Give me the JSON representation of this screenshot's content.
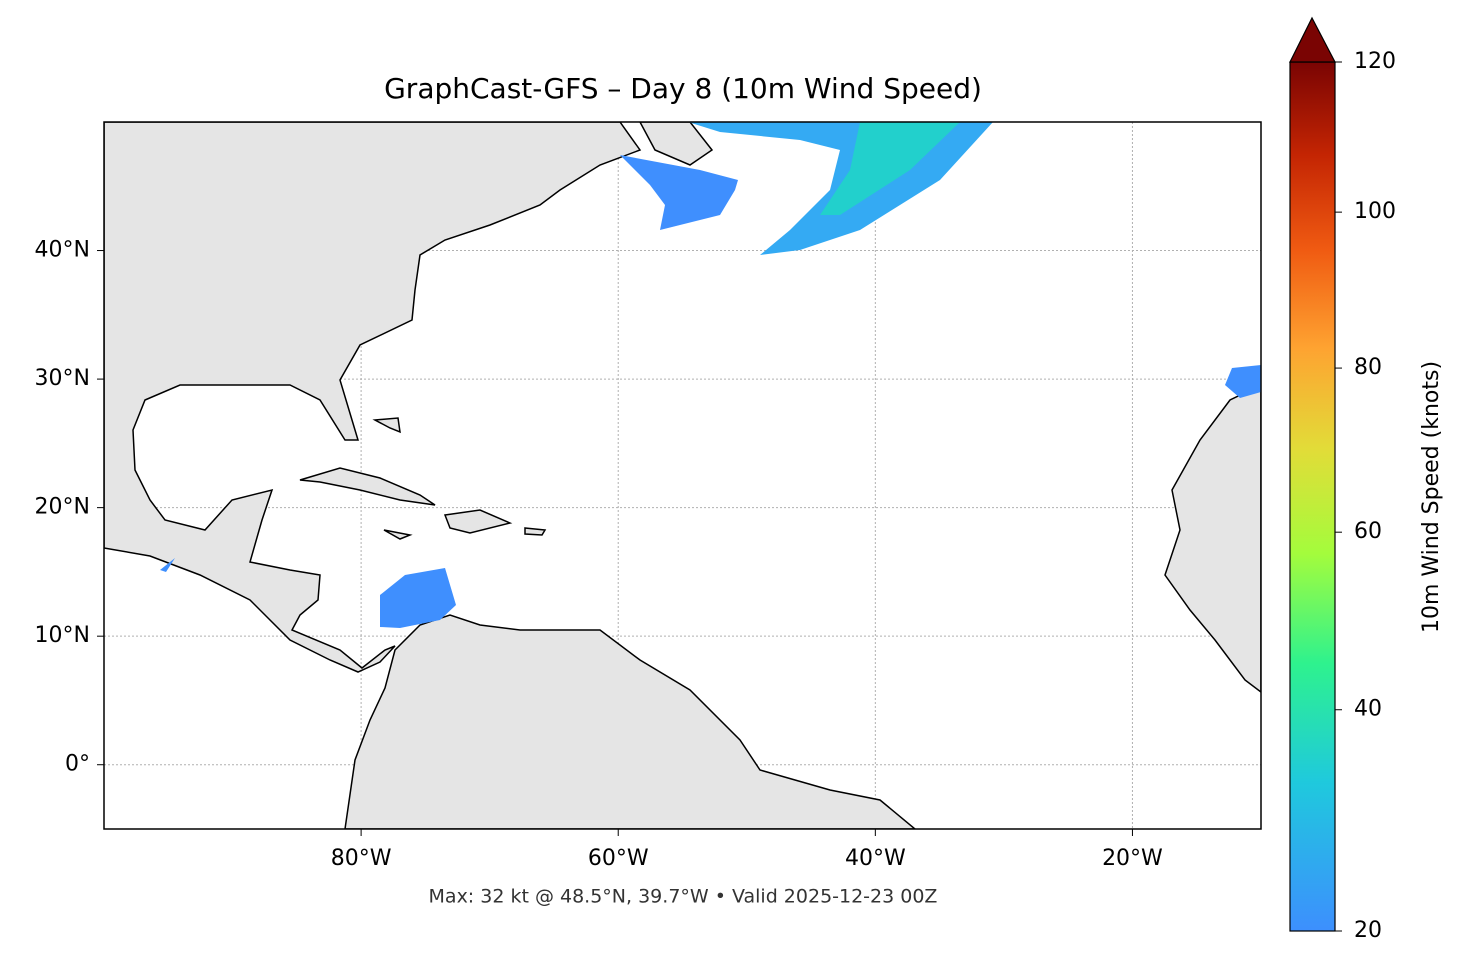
{
  "chart_data": {
    "type": "map",
    "title": "GraphCast-GFS – Day 8 (10m Wind Speed)",
    "annotation": "Max: 32 kt @ 48.5°N, 39.7°W • Valid 2025-12-23 00Z",
    "xlim": [
      -100,
      -10
    ],
    "ylim": [
      -5,
      50
    ],
    "xticks": [
      {
        "value": -80,
        "label": "80°W"
      },
      {
        "value": -60,
        "label": "60°W"
      },
      {
        "value": -40,
        "label": "40°W"
      },
      {
        "value": -20,
        "label": "20°W"
      }
    ],
    "yticks": [
      {
        "value": 0,
        "label": "0°"
      },
      {
        "value": 10,
        "label": "10°N"
      },
      {
        "value": 20,
        "label": "20°N"
      },
      {
        "value": 30,
        "label": "30°N"
      },
      {
        "value": 40,
        "label": "40°N"
      }
    ],
    "grid": true,
    "colorbar": {
      "label": "10m Wind Speed (knots)",
      "lim": [
        20,
        120
      ],
      "ticks": [
        20,
        40,
        60,
        80,
        100,
        120
      ],
      "gamma": 0.85,
      "extend": "max",
      "colors": [
        "#3d8ffe",
        "#1fc9dd",
        "#2ef28e",
        "#a4fc3c",
        "#e2dc38",
        "#fea331",
        "#f05b12",
        "#c42503",
        "#7a0403"
      ]
    }
  }
}
